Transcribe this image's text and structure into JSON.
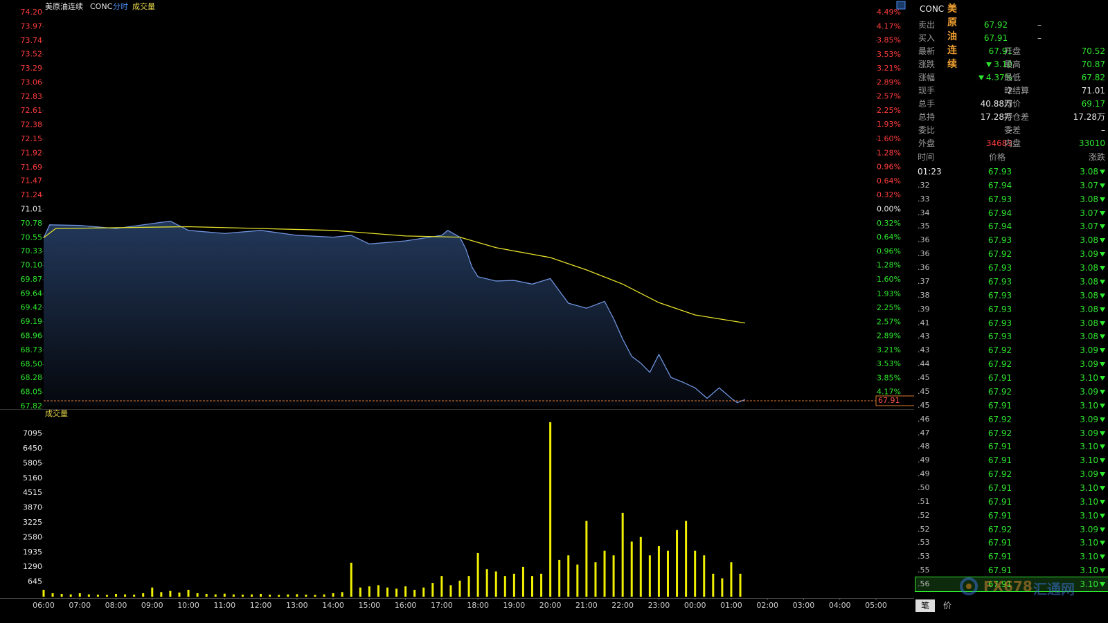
{
  "header": {
    "name": "美原油连续",
    "code": "CONC",
    "mode": "分时",
    "volume": "成交量"
  },
  "chart_data": [
    {
      "type": "line",
      "ylim": [
        67.82,
        74.2
      ],
      "y2lim": [
        -4.49,
        4.49
      ],
      "prev_close": 71.01,
      "grid": false,
      "yticks": [
        {
          "value": 74.2,
          "label": "74.20"
        },
        73.97,
        73.74,
        73.52,
        73.29,
        73.06,
        72.83,
        72.61,
        72.38,
        72.15,
        71.92,
        71.69,
        71.47,
        71.24,
        71.01,
        70.78,
        70.55,
        70.33,
        {
          "value": 70.1,
          "label": "70.10"
        },
        69.87,
        69.64,
        69.42,
        69.19,
        68.96,
        68.73,
        {
          "value": 68.5,
          "label": "68.50"
        },
        68.28,
        68.05,
        67.82
      ],
      "y2ticks": [
        {
          "value": 4.49,
          "label": "4.49%"
        },
        {
          "value": 4.17,
          "label": "4.17%"
        },
        {
          "value": 3.85,
          "label": "3.85%"
        },
        {
          "value": 3.53,
          "label": "3.53%"
        },
        {
          "value": 3.21,
          "label": "3.21%"
        },
        {
          "value": 2.89,
          "label": "2.89%"
        },
        {
          "value": 2.57,
          "label": "2.57%"
        },
        {
          "value": 2.25,
          "label": "2.25%"
        },
        {
          "value": 1.93,
          "label": "1.93%"
        },
        {
          "value": 1.6,
          "label": "1.60%"
        },
        {
          "value": 1.28,
          "label": "1.28%"
        },
        {
          "value": 0.96,
          "label": "0.96%"
        },
        {
          "value": 0.64,
          "label": "0.64%"
        },
        {
          "value": 0.32,
          "label": "0.32%"
        },
        {
          "value": 0,
          "label": "0.00%"
        },
        {
          "value": -0.32,
          "label": "0.32%"
        },
        {
          "value": -0.64,
          "label": "0.64%"
        },
        {
          "value": -0.96,
          "label": "0.96%"
        },
        {
          "value": -1.28,
          "label": "1.28%"
        },
        {
          "value": -1.6,
          "label": "1.60%"
        },
        {
          "value": -1.93,
          "label": "1.93%"
        },
        {
          "value": -2.25,
          "label": "2.25%"
        },
        {
          "value": -2.57,
          "label": "2.57%"
        },
        {
          "value": -2.89,
          "label": "2.89%"
        },
        {
          "value": -3.21,
          "label": "3.21%"
        },
        {
          "value": -3.53,
          "label": "3.53%"
        },
        {
          "value": -3.85,
          "label": "3.85%"
        },
        {
          "value": -4.17,
          "label": "4.17%"
        }
      ],
      "xticks": [
        "06:00",
        "07:00",
        "08:00",
        "09:00",
        "10:00",
        "11:00",
        "12:00",
        "13:00",
        "14:00",
        "15:00",
        "16:00",
        "17:00",
        "18:00",
        "19:00",
        "20:00",
        "21:00",
        "22:00",
        "23:00",
        "00:00",
        "01:00",
        "02:00",
        "03:00",
        "04:00",
        "05:00"
      ],
      "last_price": {
        "value": 67.91,
        "label": "67.91"
      },
      "series": [
        {
          "color": "#6f93dd",
          "x": [
            "06:00",
            "06:10",
            "07:00",
            "08:00",
            "09:00",
            "09:30",
            "10:00",
            "11:00",
            "12:00",
            "13:00",
            "14:00",
            "14:30",
            "15:00",
            "16:00",
            "17:00",
            "17:10",
            "17:30",
            "17:40",
            "17:50",
            "18:00",
            "18:30",
            "19:00",
            "19:30",
            "20:00",
            "20:15",
            "20:30",
            "21:00",
            "21:30",
            "21:45",
            "22:00",
            "22:15",
            "22:30",
            "22:45",
            "23:00",
            "23:20",
            "23:40",
            "00:00",
            "00:20",
            "00:40",
            "01:00",
            "01:10",
            "01:23"
          ],
          "values": [
            70.55,
            70.76,
            70.75,
            70.7,
            70.78,
            70.82,
            70.67,
            70.62,
            70.67,
            70.59,
            70.56,
            70.59,
            70.45,
            70.5,
            70.59,
            70.67,
            70.56,
            70.37,
            70.08,
            69.92,
            69.85,
            69.86,
            69.8,
            69.89,
            69.69,
            69.49,
            69.41,
            69.52,
            69.24,
            68.91,
            68.63,
            68.52,
            68.37,
            68.66,
            68.29,
            68.21,
            68.12,
            67.95,
            68.12,
            67.95,
            67.88,
            67.93
          ]
        },
        {
          "color": "#e6e22a",
          "x": [
            "06:00",
            "06:20",
            "10:00",
            "14:00",
            "16:00",
            "17:30",
            "18:30",
            "20:00",
            "21:00",
            "22:00",
            "23:00",
            "00:00",
            "01:23"
          ],
          "values": [
            70.55,
            70.7,
            70.73,
            70.67,
            70.58,
            70.56,
            70.39,
            70.23,
            70.03,
            69.8,
            69.5,
            69.3,
            69.17
          ]
        }
      ]
    },
    {
      "type": "bar",
      "ylim": [
        0,
        7740
      ],
      "yticks": [
        645,
        1290,
        1935,
        2580,
        3225,
        3870,
        4515,
        5160,
        5805,
        6450,
        7095
      ],
      "color": "#f0f000",
      "x": [
        "06:00",
        "06:15",
        "06:30",
        "06:45",
        "07:00",
        "07:15",
        "07:30",
        "07:45",
        "08:00",
        "08:15",
        "08:30",
        "08:45",
        "09:00",
        "09:15",
        "09:30",
        "09:45",
        "10:00",
        "10:15",
        "10:30",
        "10:45",
        "11:00",
        "11:15",
        "11:30",
        "11:45",
        "12:00",
        "12:15",
        "12:30",
        "12:45",
        "13:00",
        "13:15",
        "13:30",
        "13:45",
        "14:00",
        "14:15",
        "14:30",
        "14:45",
        "15:00",
        "15:15",
        "15:30",
        "15:45",
        "16:00",
        "16:15",
        "16:30",
        "16:45",
        "17:00",
        "17:15",
        "17:30",
        "17:45",
        "18:00",
        "18:15",
        "18:30",
        "18:45",
        "19:00",
        "19:15",
        "19:30",
        "19:45",
        "20:00",
        "20:15",
        "20:30",
        "20:45",
        "21:00",
        "21:15",
        "21:30",
        "21:45",
        "22:00",
        "22:15",
        "22:30",
        "22:45",
        "23:00",
        "23:15",
        "23:30",
        "23:45",
        "00:00",
        "00:15",
        "00:30",
        "00:45",
        "01:00",
        "01:15"
      ],
      "values": [
        300,
        150,
        120,
        100,
        150,
        100,
        90,
        80,
        120,
        100,
        90,
        150,
        400,
        200,
        250,
        180,
        300,
        150,
        120,
        100,
        130,
        100,
        90,
        100,
        120,
        90,
        80,
        100,
        110,
        90,
        80,
        100,
        150,
        200,
        1480,
        400,
        450,
        500,
        400,
        350,
        450,
        300,
        400,
        600,
        900,
        500,
        700,
        900,
        1900,
        1200,
        1100,
        900,
        1000,
        1300,
        900,
        1000,
        7600,
        1600,
        1800,
        1400,
        3300,
        1500,
        2000,
        1800,
        3650,
        2400,
        2600,
        1800,
        2200,
        2000,
        2900,
        3300,
        2000,
        1800,
        1000,
        800,
        1500,
        1000
      ]
    }
  ],
  "quote": {
    "code": "CONC",
    "name": "美原油连续",
    "sell": {
      "label": "卖出",
      "value": "67.92",
      "volume": "–"
    },
    "buy": {
      "label": "买入",
      "value": "67.91",
      "volume": "–"
    },
    "rows": [
      [
        "最新",
        "67.91",
        "开盘",
        "70.52"
      ],
      [
        "涨跌",
        "3.10",
        "最高",
        "70.87"
      ],
      [
        "涨幅",
        "4.37%",
        "最低",
        "67.82"
      ],
      [
        "现手",
        "2",
        "昨结算",
        "71.01"
      ],
      [
        "总手",
        "40.88万",
        "均价",
        "69.17"
      ],
      [
        "总持",
        "17.28万",
        "持仓差",
        "17.28万"
      ],
      [
        "委比",
        "–",
        "委差",
        "–"
      ],
      [
        "外盘",
        "34683",
        "内盘",
        "33010"
      ]
    ]
  },
  "trades": {
    "columns": [
      "时间",
      "价格",
      "涨跌"
    ],
    "rows": [
      [
        "01:23",
        "67.93",
        "3.08"
      ],
      [
        ".32",
        "67.94",
        "3.07"
      ],
      [
        ".33",
        "67.93",
        "3.08"
      ],
      [
        ".34",
        "67.94",
        "3.07"
      ],
      [
        ".35",
        "67.94",
        "3.07"
      ],
      [
        ".36",
        "67.93",
        "3.08"
      ],
      [
        ".36",
        "67.92",
        "3.09"
      ],
      [
        ".36",
        "67.93",
        "3.08"
      ],
      [
        ".37",
        "67.93",
        "3.08"
      ],
      [
        ".38",
        "67.93",
        "3.08"
      ],
      [
        ".39",
        "67.93",
        "3.08"
      ],
      [
        ".41",
        "67.93",
        "3.08"
      ],
      [
        ".43",
        "67.93",
        "3.08"
      ],
      [
        ".43",
        "67.92",
        "3.09"
      ],
      [
        ".44",
        "67.92",
        "3.09"
      ],
      [
        ".45",
        "67.91",
        "3.10"
      ],
      [
        ".45",
        "67.92",
        "3.09"
      ],
      [
        ".45",
        "67.91",
        "3.10"
      ],
      [
        ".46",
        "67.92",
        "3.09"
      ],
      [
        ".47",
        "67.92",
        "3.09"
      ],
      [
        ".48",
        "67.91",
        "3.10"
      ],
      [
        ".49",
        "67.91",
        "3.10"
      ],
      [
        ".49",
        "67.92",
        "3.09"
      ],
      [
        ".50",
        "67.91",
        "3.10"
      ],
      [
        ".51",
        "67.91",
        "3.10"
      ],
      [
        ".52",
        "67.91",
        "3.10"
      ],
      [
        ".52",
        "67.92",
        "3.09"
      ],
      [
        ".53",
        "67.91",
        "3.10"
      ],
      [
        ".53",
        "67.91",
        "3.10"
      ],
      [
        ".55",
        "67.91",
        "3.10"
      ],
      [
        ".56",
        "67.91",
        "3.10"
      ]
    ]
  },
  "tabs": [
    "笔",
    "价"
  ],
  "watermark": {
    "brand": "FX678",
    "name": "汇通网"
  }
}
